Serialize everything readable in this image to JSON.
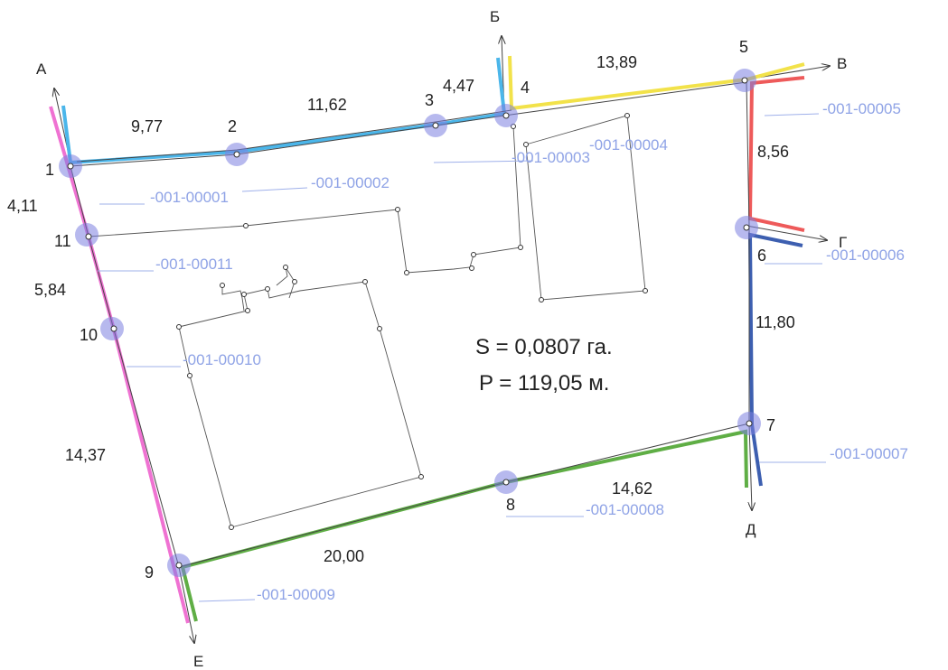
{
  "points": [
    "1",
    "2",
    "3",
    "4",
    "5",
    "6",
    "7",
    "8",
    "9",
    "10",
    "11"
  ],
  "directions": [
    "А",
    "Б",
    "В",
    "Г",
    "Д",
    "Е"
  ],
  "lengths": {
    "s1_2": "9,77",
    "s2_3": "11,62",
    "s3_4": "4,47",
    "s4_5": "13,89",
    "s5_6": "8,56",
    "s6_7": "11,80",
    "s7_8": "14,62",
    "s8_9": "20,00",
    "s9_10": "14,37",
    "s10_11": "5,84",
    "s11_1": "4,11"
  },
  "neighbours": {
    "n1": "-001-00001",
    "n2": "-001-00002",
    "n3": "-001-00003",
    "n4": "-001-00004",
    "n5": "-001-00005",
    "n6": "-001-00006",
    "n7": "-001-00007",
    "n8": "-001-00008",
    "n9": "-001-00009",
    "n10": "-001-00010",
    "n11": "-001-00011"
  },
  "area_text": "S = 0,0807 га.",
  "perimeter_text": "P = 119,05 м.",
  "colors": {
    "blue": "#4bb6ea",
    "yellow": "#f2e24a",
    "red": "#ee5a5a",
    "navy": "#3d5fb0",
    "green": "#5fae45",
    "pink": "#ef72d2",
    "cadastral_text": "#8fa3e6",
    "vertex_halo": "#7b7fe0"
  }
}
